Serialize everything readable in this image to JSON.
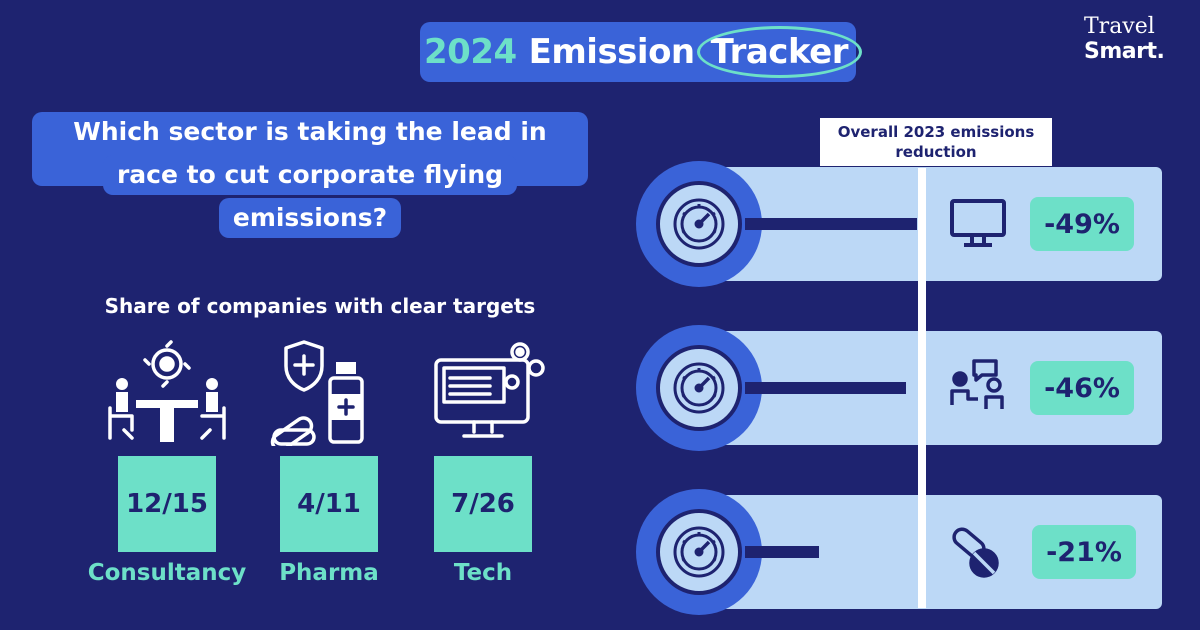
{
  "header": {
    "title_year": "2024",
    "title_word": "Emission",
    "title_circled": "Tracker",
    "brand_top": "Travel",
    "brand_bottom": "Smart."
  },
  "question": {
    "lines": [
      "Which sector is taking the lead in the",
      "race to cut corporate flying",
      "emissions?"
    ]
  },
  "share_title": "Share of companies with clear targets",
  "sectors": [
    {
      "name": "Consultancy",
      "value": "12/15",
      "icon": "meeting-icon"
    },
    {
      "name": "Pharma",
      "value": "4/11",
      "icon": "pharma-icon"
    },
    {
      "name": "Tech",
      "value": "7/26",
      "icon": "computer-icon"
    }
  ],
  "colors": {
    "background": "#1e2370",
    "accent_blue": "#3a63d8",
    "mint": "#6de0c8",
    "light_blue": "#bcd8f6"
  },
  "chart_data": {
    "type": "bar",
    "orientation": "horizontal",
    "title": "Overall 2023 emissions reduction",
    "categories": [
      "Tech",
      "Consultancy",
      "Pharma"
    ],
    "values": [
      -49,
      -46,
      -21
    ],
    "labels": [
      "-49%",
      "-46%",
      "-21%"
    ],
    "row_icons": [
      "monitor-icon",
      "consultation-icon",
      "pills-icon"
    ],
    "xlabel": "",
    "ylabel": ""
  }
}
